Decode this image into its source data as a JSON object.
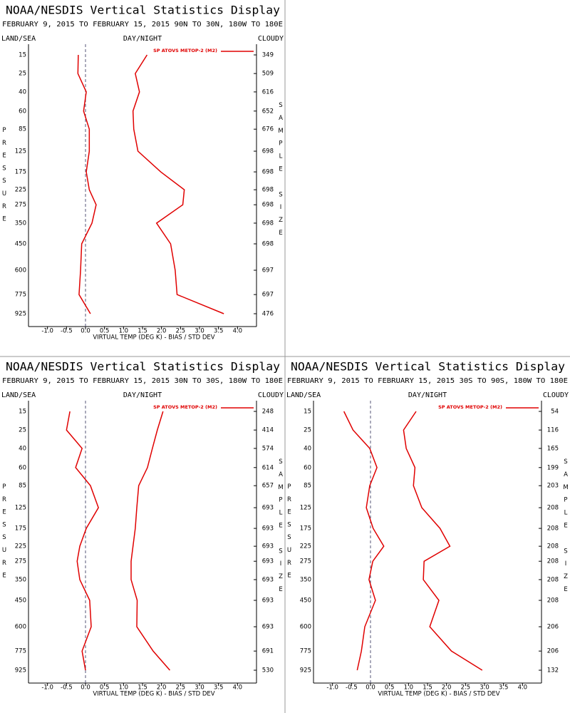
{
  "chart_data": [
    {
      "type": "line",
      "title": "NOAA/NESDIS Vertical Statistics Display",
      "subtitle": "FEBRUARY 9, 2015 TO FEBRUARY 15, 2015 90N TO 30N, 180W TO 180E",
      "left_label": "LAND/SEA",
      "center_label": "DAY/NIGHT",
      "right_label": "CLOUDY",
      "y_label": "PRESSURE",
      "y2_label": "SAMPLE SIZE",
      "x_label": "VIRTUAL TEMP (DEG K) - BIAS / STD DEV",
      "categories": [
        15,
        25,
        40,
        60,
        85,
        125,
        175,
        225,
        275,
        350,
        450,
        600,
        775,
        925
      ],
      "sample_size": [
        349,
        509,
        616,
        652,
        676,
        698,
        698,
        698,
        698,
        698,
        698,
        697,
        697,
        476
      ],
      "series": [
        {
          "name": "SP ATOVS METOP-2 (M2)",
          "color": "#e00000",
          "bias": [
            -0.19,
            -0.2,
            0.02,
            -0.05,
            0.1,
            0.1,
            0.02,
            0.1,
            0.28,
            0.17,
            -0.1,
            -0.13,
            -0.17,
            0.13
          ],
          "std_dev": [
            1.62,
            1.31,
            1.42,
            1.25,
            1.27,
            1.38,
            1.98,
            2.6,
            2.56,
            1.87,
            2.24,
            2.36,
            2.41,
            3.64
          ]
        }
      ],
      "xlim": [
        -1.5,
        4.5
      ],
      "xticks": [
        {
          "value": -1,
          "label": "-1.0"
        },
        {
          "value": -0.5,
          "label": "-0.5"
        },
        {
          "value": 0,
          "label": "0.0"
        },
        {
          "value": 0.5,
          "label": "0.5"
        },
        {
          "value": 1,
          "label": "1.0"
        },
        {
          "value": 1.5,
          "label": "1.5"
        },
        {
          "value": 2,
          "label": "2.0"
        },
        {
          "value": 2.5,
          "label": "2.5"
        },
        {
          "value": 3,
          "label": "3.0"
        },
        {
          "value": 3.5,
          "label": "3.5"
        },
        {
          "value": 4,
          "label": "4.0"
        }
      ],
      "reference_x": 0
    },
    {
      "type": "line",
      "title": "NOAA/NESDIS Vertical Statistics Display",
      "subtitle": "FEBRUARY 9, 2015 TO FEBRUARY 15, 2015 30N TO 30S, 180W TO 180E",
      "left_label": "LAND/SEA",
      "center_label": "DAY/NIGHT",
      "right_label": "CLOUDY",
      "y_label": "PRESSURE",
      "y2_label": "SAMPLE SIZE",
      "x_label": "VIRTUAL TEMP (DEG K) - BIAS / STD DEV",
      "categories": [
        15,
        25,
        40,
        60,
        85,
        125,
        175,
        225,
        275,
        350,
        450,
        600,
        775,
        925
      ],
      "sample_size": [
        248,
        414,
        574,
        614,
        657,
        693,
        693,
        693,
        693,
        693,
        693,
        693,
        691,
        530
      ],
      "series": [
        {
          "name": "SP ATOVS METOP-2 (M2)",
          "color": "#e00000",
          "bias": [
            -0.41,
            -0.5,
            -0.09,
            -0.26,
            0.13,
            0.34,
            0.02,
            -0.15,
            -0.22,
            -0.15,
            0.11,
            0.15,
            -0.09,
            0.0
          ],
          "std_dev": [
            2.04,
            1.89,
            1.76,
            1.63,
            1.4,
            1.35,
            1.31,
            1.25,
            1.2,
            1.2,
            1.36,
            1.35,
            1.78,
            2.22
          ]
        }
      ],
      "xlim": [
        -1.5,
        4.5
      ],
      "xticks": [
        {
          "value": -1,
          "label": "-1.0"
        },
        {
          "value": -0.5,
          "label": "-0.5"
        },
        {
          "value": 0,
          "label": "0.0"
        },
        {
          "value": 0.5,
          "label": "0.5"
        },
        {
          "value": 1,
          "label": "1.0"
        },
        {
          "value": 1.5,
          "label": "1.5"
        },
        {
          "value": 2,
          "label": "2.0"
        },
        {
          "value": 2.5,
          "label": "2.5"
        },
        {
          "value": 3,
          "label": "3.0"
        },
        {
          "value": 3.5,
          "label": "3.5"
        },
        {
          "value": 4,
          "label": "4.0"
        }
      ],
      "reference_x": 0
    },
    {
      "type": "line",
      "title": "NOAA/NESDIS Vertical Statistics Display",
      "subtitle": "FEBRUARY 9, 2015 TO FEBRUARY 15, 2015 30S TO 90S, 180W TO 180E",
      "left_label": "LAND/SEA",
      "center_label": "DAY/NIGHT",
      "right_label": "CLOUDY",
      "y_label": "PRESSURE",
      "y2_label": "SAMPLE SIZE",
      "x_label": "VIRTUAL TEMP (DEG K) - BIAS / STD DEV",
      "categories": [
        15,
        25,
        40,
        60,
        85,
        125,
        175,
        225,
        275,
        350,
        450,
        600,
        775,
        925
      ],
      "sample_size": [
        54,
        116,
        165,
        199,
        203,
        208,
        208,
        208,
        208,
        208,
        208,
        206,
        206,
        132
      ],
      "series": [
        {
          "name": "SP ATOVS METOP-2 (M2)",
          "color": "#e00000",
          "bias": [
            -0.7,
            -0.46,
            -0.02,
            0.17,
            -0.02,
            -0.11,
            0.07,
            0.35,
            0.06,
            -0.04,
            0.13,
            -0.15,
            -0.24,
            -0.35
          ],
          "std_dev": [
            1.2,
            0.87,
            0.94,
            1.17,
            1.13,
            1.35,
            1.83,
            2.09,
            1.41,
            1.39,
            1.8,
            1.56,
            2.13,
            2.94
          ]
        }
      ],
      "xlim": [
        -1.5,
        4.5
      ],
      "xticks": [
        {
          "value": -1,
          "label": "-1.0"
        },
        {
          "value": -0.5,
          "label": "-0.5"
        },
        {
          "value": 0,
          "label": "0.0"
        },
        {
          "value": 0.5,
          "label": "0.5"
        },
        {
          "value": 1,
          "label": "1.0"
        },
        {
          "value": 1.5,
          "label": "1.5"
        },
        {
          "value": 2,
          "label": "2.0"
        },
        {
          "value": 2.5,
          "label": "2.5"
        },
        {
          "value": 3,
          "label": "3.0"
        },
        {
          "value": 3.5,
          "label": "3.5"
        },
        {
          "value": 4,
          "label": "4.0"
        }
      ],
      "reference_x": 0
    }
  ]
}
